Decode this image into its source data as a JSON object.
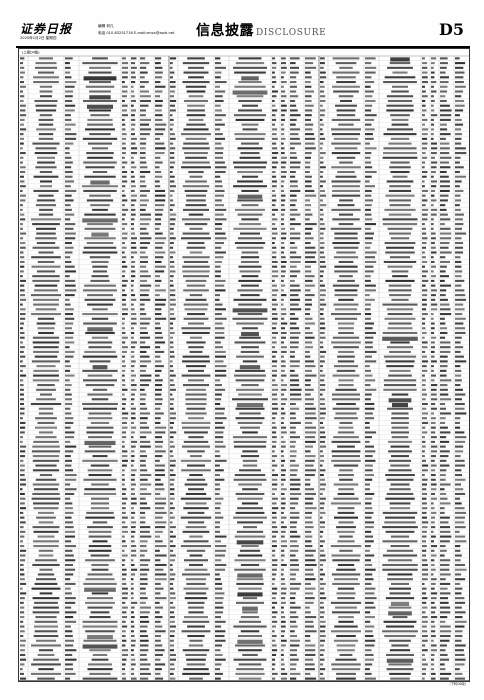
{
  "masthead": {
    "logo": "证券日报",
    "date_line": "2020年1月2日 星期四",
    "editor": "编辑 何凡",
    "contact": "电话 010-83251716  E-mail:zmzx@zqrb.net",
    "section_title": "信息披露",
    "section_subtitle": "DISCLOSURE",
    "page_number": "D5"
  },
  "table": {
    "header_note": "(上接D4版)",
    "columns_per_block": 8,
    "blocks": 3,
    "rows": 132,
    "ink_color": "#1a1a1a",
    "rule_color": "#888888"
  },
  "footnote": "(下转D6版)"
}
